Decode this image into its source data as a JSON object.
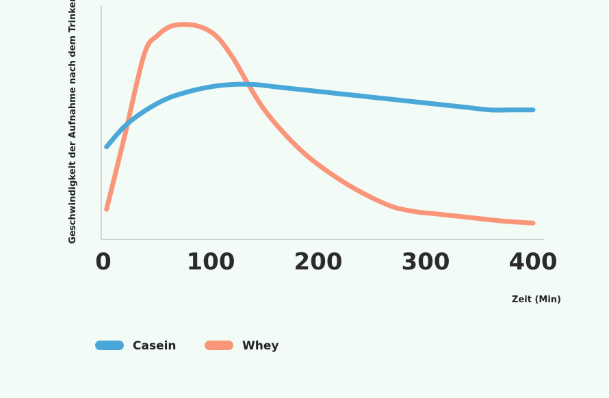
{
  "chart_data": {
    "type": "line",
    "title": "",
    "xlabel": "Zeit (Min)",
    "ylabel": "Geschwindigkeit der Aufnahme nach dem Trinken",
    "xlim": [
      0,
      400
    ],
    "ylim": [
      0,
      100
    ],
    "x_ticks": [
      "0",
      "100",
      "200",
      "300",
      "400"
    ],
    "y_ticks": [],
    "grid": false,
    "legend_position": "bottom-left",
    "series": [
      {
        "name": "Casein",
        "color": "#4aa8d8",
        "x": [
          3,
          20,
          40,
          60,
          80,
          100,
          120,
          140,
          160,
          180,
          200,
          220,
          240,
          260,
          280,
          300,
          320,
          340,
          360,
          380,
          400
        ],
        "y": [
          40,
          49,
          56,
          61,
          64,
          66,
          67,
          67,
          66,
          65,
          64,
          63,
          62,
          61,
          60,
          59,
          58,
          57,
          56,
          56,
          56
        ]
      },
      {
        "name": "Whey",
        "color": "#f9967a",
        "x": [
          3,
          20,
          38,
          50,
          62,
          75,
          90,
          105,
          120,
          135,
          150,
          170,
          190,
          210,
          230,
          250,
          270,
          290,
          310,
          330,
          350,
          370,
          400
        ],
        "y": [
          13,
          45,
          80,
          88,
          92,
          93,
          92,
          88,
          79,
          67,
          56,
          45,
          36,
          29,
          23,
          18,
          14,
          12,
          11,
          10,
          9,
          8,
          7
        ]
      }
    ]
  }
}
